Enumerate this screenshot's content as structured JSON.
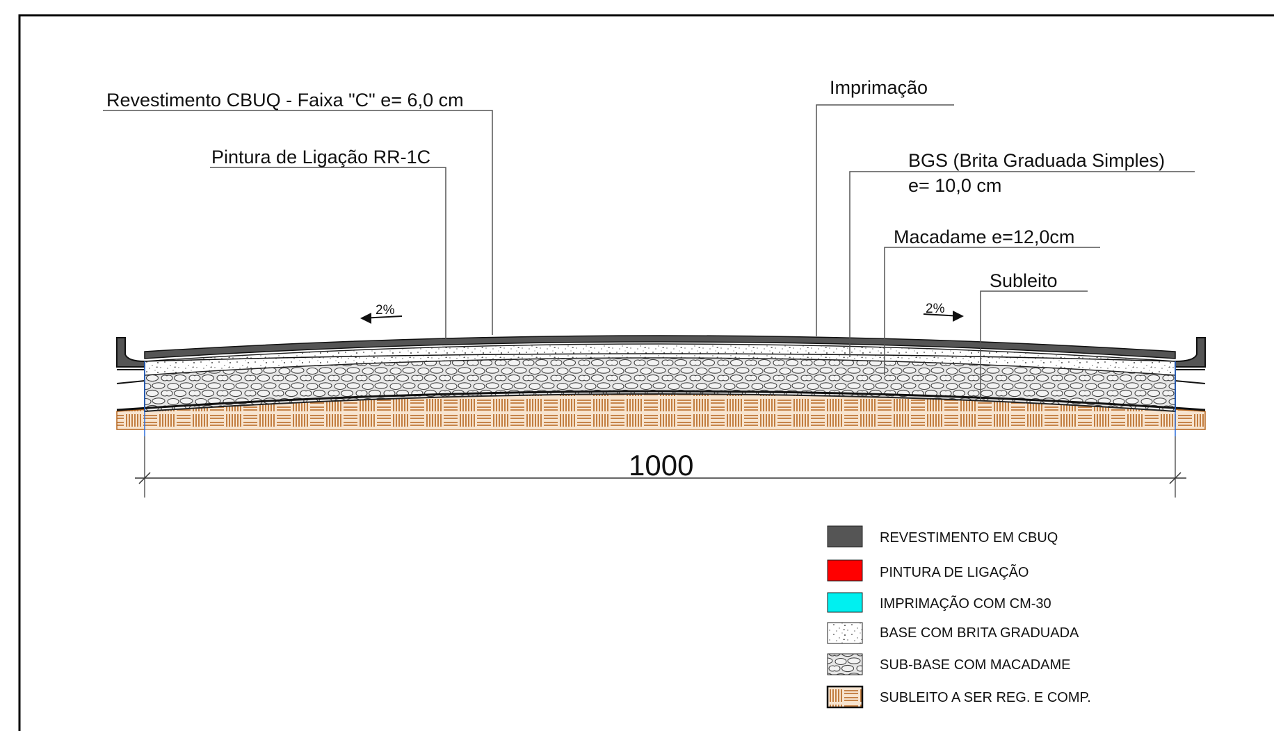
{
  "annotations": {
    "revestimento": "Revestimento CBUQ - Faixa \"C\" e= 6,0 cm",
    "pintura": "Pintura de Ligação RR-1C",
    "imprimacao": "Imprimação",
    "bgs_line1": "BGS (Brita Graduada Simples)",
    "bgs_line2": "e= 10,0 cm",
    "macadame": "Macadame e=12,0cm",
    "subleito": "Subleito"
  },
  "slopes": {
    "left": "2%",
    "right": "2%"
  },
  "dimension": {
    "width": "1000"
  },
  "legend": [
    {
      "label": "REVESTIMENTO EM CBUQ",
      "swatch": "solid",
      "color": "#555555"
    },
    {
      "label": "PINTURA DE LIGAÇÃO",
      "swatch": "solid",
      "color": "#ff0000"
    },
    {
      "label": "IMPRIMAÇÃO COM CM-30",
      "swatch": "solid",
      "color": "#00f0f0"
    },
    {
      "label": "BASE COM BRITA GRADUADA",
      "swatch": "dots"
    },
    {
      "label": "SUB-BASE COM MACADAME",
      "swatch": "stones"
    },
    {
      "label": "SUBLEITO A SER REG. E COMP.",
      "swatch": "brick"
    }
  ],
  "colors": {
    "asphalt": "#555555",
    "tack_coat": "#ff0000",
    "prime_coat": "#00f0f0",
    "subgrade_line": "#b5651d",
    "frame": "#000000"
  }
}
